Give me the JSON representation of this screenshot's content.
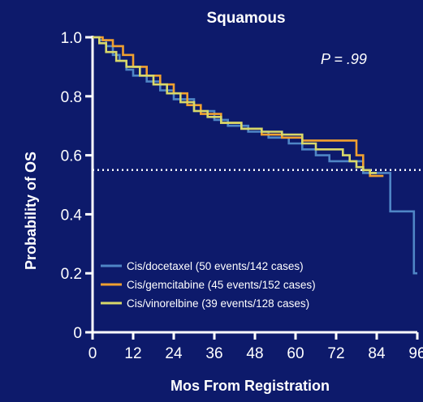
{
  "chart_data": {
    "type": "line",
    "step": true,
    "title": "Squamous",
    "annotation": "P = .99",
    "xlabel": "Mos From Registration",
    "ylabel": "Probability of OS",
    "xlim": [
      0,
      96
    ],
    "ylim": [
      0,
      1.0
    ],
    "xticks": [
      0,
      12,
      24,
      36,
      48,
      60,
      72,
      84,
      96
    ],
    "yticks": [
      0,
      0.2,
      0.4,
      0.6,
      0.8,
      1.0
    ],
    "ytick_labels": [
      "0",
      "0.2",
      "0.4",
      "0.6",
      "0.8",
      "1.0"
    ],
    "reference_line": {
      "y": 0.55,
      "style": "dotted",
      "color": "#ffffff"
    },
    "legend_position": "bottom-right",
    "series": [
      {
        "name": "Cis/docetaxel (50 events/142 cases)",
        "color": "#4f86c6",
        "points": [
          [
            0,
            1.0
          ],
          [
            2,
            0.99
          ],
          [
            4,
            0.97
          ],
          [
            6,
            0.94
          ],
          [
            8,
            0.92
          ],
          [
            10,
            0.89
          ],
          [
            12,
            0.87
          ],
          [
            16,
            0.85
          ],
          [
            20,
            0.82
          ],
          [
            24,
            0.79
          ],
          [
            30,
            0.75
          ],
          [
            36,
            0.72
          ],
          [
            40,
            0.7
          ],
          [
            46,
            0.68
          ],
          [
            52,
            0.66
          ],
          [
            58,
            0.64
          ],
          [
            62,
            0.62
          ],
          [
            66,
            0.6
          ],
          [
            70,
            0.58
          ],
          [
            78,
            0.58
          ],
          [
            80,
            0.54
          ],
          [
            88,
            0.54
          ],
          [
            88,
            0.41
          ],
          [
            95,
            0.41
          ],
          [
            95,
            0.2
          ],
          [
            96,
            0.2
          ]
        ]
      },
      {
        "name": "Cis/gemcitabine (45 events/152 cases)",
        "color": "#f0a030",
        "points": [
          [
            0,
            1.0
          ],
          [
            3,
            0.99
          ],
          [
            6,
            0.97
          ],
          [
            9,
            0.94
          ],
          [
            12,
            0.9
          ],
          [
            16,
            0.87
          ],
          [
            20,
            0.84
          ],
          [
            24,
            0.81
          ],
          [
            28,
            0.77
          ],
          [
            32,
            0.74
          ],
          [
            38,
            0.71
          ],
          [
            44,
            0.69
          ],
          [
            50,
            0.67
          ],
          [
            56,
            0.66
          ],
          [
            62,
            0.65
          ],
          [
            68,
            0.65
          ],
          [
            74,
            0.65
          ],
          [
            78,
            0.65
          ],
          [
            78,
            0.6
          ],
          [
            80,
            0.55
          ],
          [
            82,
            0.53
          ],
          [
            86,
            0.53
          ]
        ]
      },
      {
        "name": "Cis/vinorelbine (39 events/128 cases)",
        "color": "#d8d86a",
        "points": [
          [
            0,
            1.0
          ],
          [
            2,
            0.98
          ],
          [
            4,
            0.95
          ],
          [
            7,
            0.92
          ],
          [
            10,
            0.9
          ],
          [
            14,
            0.87
          ],
          [
            18,
            0.84
          ],
          [
            22,
            0.81
          ],
          [
            26,
            0.78
          ],
          [
            30,
            0.75
          ],
          [
            34,
            0.73
          ],
          [
            38,
            0.71
          ],
          [
            44,
            0.69
          ],
          [
            50,
            0.68
          ],
          [
            56,
            0.67
          ],
          [
            62,
            0.64
          ],
          [
            66,
            0.62
          ],
          [
            72,
            0.62
          ],
          [
            74,
            0.6
          ],
          [
            76,
            0.58
          ],
          [
            78,
            0.56
          ],
          [
            80,
            0.55
          ],
          [
            82,
            0.54
          ],
          [
            84,
            0.54
          ]
        ]
      }
    ]
  }
}
